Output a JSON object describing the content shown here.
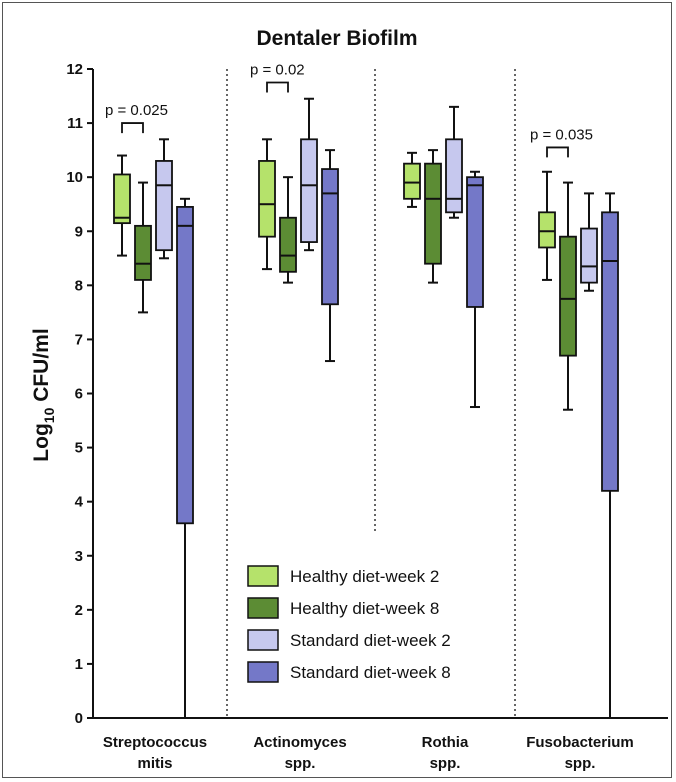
{
  "chart_data": {
    "type": "boxplot",
    "title": "Dentaler Biofilm",
    "ylabel_main": "Log",
    "ylabel_sub": "10",
    "ylabel_rest": " CFU/ml",
    "ylim": [
      0,
      12
    ],
    "yticks": [
      0,
      1,
      2,
      3,
      4,
      5,
      6,
      7,
      8,
      9,
      10,
      11,
      12
    ],
    "legend_position": "bottom-center",
    "groups": [
      {
        "label_line1": "Streptococcus",
        "label_line2": "mitis"
      },
      {
        "label_line1": "Actinomyces",
        "label_line2": "spp."
      },
      {
        "label_line1": "Rothia",
        "label_line2": "spp."
      },
      {
        "label_line1": "Fusobacterium",
        "label_line2": "spp."
      }
    ],
    "series": [
      {
        "name": "Healthy diet-week 2",
        "color": "#b5e26b",
        "boxes": [
          {
            "min": 8.55,
            "q1": 9.15,
            "median": 9.25,
            "q3": 10.05,
            "max": 10.4
          },
          {
            "min": 8.3,
            "q1": 8.9,
            "median": 9.5,
            "q3": 10.3,
            "max": 10.7
          },
          {
            "min": 9.45,
            "q1": 9.6,
            "median": 9.9,
            "q3": 10.25,
            "max": 10.45
          },
          {
            "min": 8.1,
            "q1": 8.7,
            "median": 9.0,
            "q3": 9.35,
            "max": 10.1
          }
        ]
      },
      {
        "name": "Healthy diet-week 8",
        "color": "#5c8c34",
        "boxes": [
          {
            "min": 7.5,
            "q1": 8.1,
            "median": 8.4,
            "q3": 9.1,
            "max": 9.9
          },
          {
            "min": 8.05,
            "q1": 8.25,
            "median": 8.55,
            "q3": 9.25,
            "max": 10.0
          },
          {
            "min": 8.05,
            "q1": 8.4,
            "median": 9.6,
            "q3": 10.25,
            "max": 10.5
          },
          {
            "min": 5.7,
            "q1": 6.7,
            "median": 7.75,
            "q3": 8.9,
            "max": 9.9
          }
        ]
      },
      {
        "name": "Standard diet-week 2",
        "color": "#c6c8ee",
        "boxes": [
          {
            "min": 8.5,
            "q1": 8.65,
            "median": 9.85,
            "q3": 10.3,
            "max": 10.7
          },
          {
            "min": 8.65,
            "q1": 8.8,
            "median": 9.85,
            "q3": 10.7,
            "max": 11.45
          },
          {
            "min": 9.25,
            "q1": 9.35,
            "median": 9.6,
            "q3": 10.7,
            "max": 11.3
          },
          {
            "min": 7.9,
            "q1": 8.05,
            "median": 8.35,
            "q3": 9.05,
            "max": 9.7
          }
        ]
      },
      {
        "name": "Standard diet-week 8",
        "color": "#7478c8",
        "boxes": [
          {
            "min": 0.0,
            "q1": 3.6,
            "median": 9.1,
            "q3": 9.45,
            "max": 9.6
          },
          {
            "min": 6.6,
            "q1": 7.65,
            "median": 9.7,
            "q3": 10.15,
            "max": 10.5
          },
          {
            "min": 5.75,
            "q1": 7.6,
            "median": 9.85,
            "q3": 10.0,
            "max": 10.1
          },
          {
            "min": 0.0,
            "q1": 4.2,
            "median": 8.45,
            "q3": 9.35,
            "max": 9.7
          }
        ]
      }
    ],
    "annotations": [
      {
        "text": "p = 0.025",
        "group": 0,
        "from_series": 0,
        "to_series": 1,
        "y": 11.0
      },
      {
        "text": "p = 0.02",
        "group": 1,
        "from_series": 0,
        "to_series": 1,
        "y": 11.75
      },
      {
        "text": "p = 0.035",
        "group": 3,
        "from_series": 0,
        "to_series": 1,
        "y": 10.55
      }
    ]
  }
}
